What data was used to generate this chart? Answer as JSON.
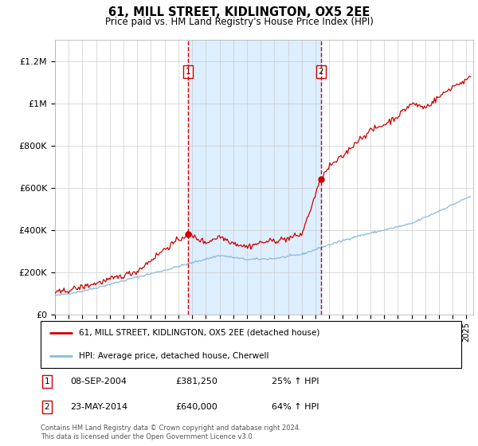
{
  "title": "61, MILL STREET, KIDLINGTON, OX5 2EE",
  "subtitle": "Price paid vs. HM Land Registry's House Price Index (HPI)",
  "ylim": [
    0,
    1300000
  ],
  "yticks": [
    0,
    200000,
    400000,
    600000,
    800000,
    1000000,
    1200000
  ],
  "ytick_labels": [
    "£0",
    "£200K",
    "£400K",
    "£600K",
    "£800K",
    "£1M",
    "£1.2M"
  ],
  "sale1_x": 2004.69,
  "sale1_price": 381250,
  "sale2_x": 2014.39,
  "sale2_price": 640000,
  "vline_color": "#cc0000",
  "shade_color": "#ddeeff",
  "legend_line1": "61, MILL STREET, KIDLINGTON, OX5 2EE (detached house)",
  "legend_line2": "HPI: Average price, detached house, Cherwell",
  "line1_color": "#cc0000",
  "line2_color": "#88bbdd",
  "note": "Contains HM Land Registry data © Crown copyright and database right 2024.\nThis data is licensed under the Open Government Licence v3.0.",
  "xmin": 1995,
  "xmax": 2025.5
}
